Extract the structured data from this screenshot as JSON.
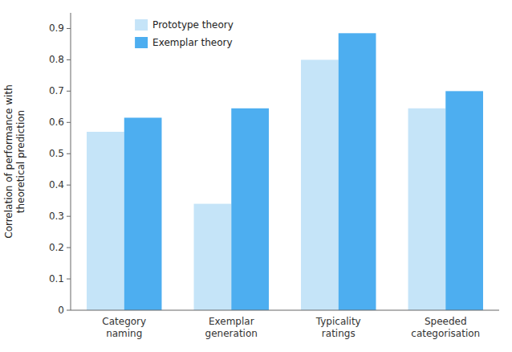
{
  "chart_data": {
    "type": "bar",
    "ylabel": "Correlation of performance with\ntheoretical prediction",
    "categories": [
      "Category\nnaming",
      "Exemplar\ngeneration",
      "Typicality\nratings",
      "Speeded\ncategorisation"
    ],
    "series": [
      {
        "name": "Prototype theory",
        "color": "#C5E4F8",
        "values": [
          0.57,
          0.34,
          0.8,
          0.645
        ]
      },
      {
        "name": "Exemplar theory",
        "color": "#4DAEF0",
        "values": [
          0.615,
          0.645,
          0.885,
          0.7
        ]
      }
    ],
    "ylim": [
      0,
      0.95
    ],
    "yticks": [
      0,
      0.1,
      0.2,
      0.3,
      0.4,
      0.5,
      0.6,
      0.7,
      0.8,
      0.9
    ],
    "grid": false,
    "legend": "upper left"
  }
}
